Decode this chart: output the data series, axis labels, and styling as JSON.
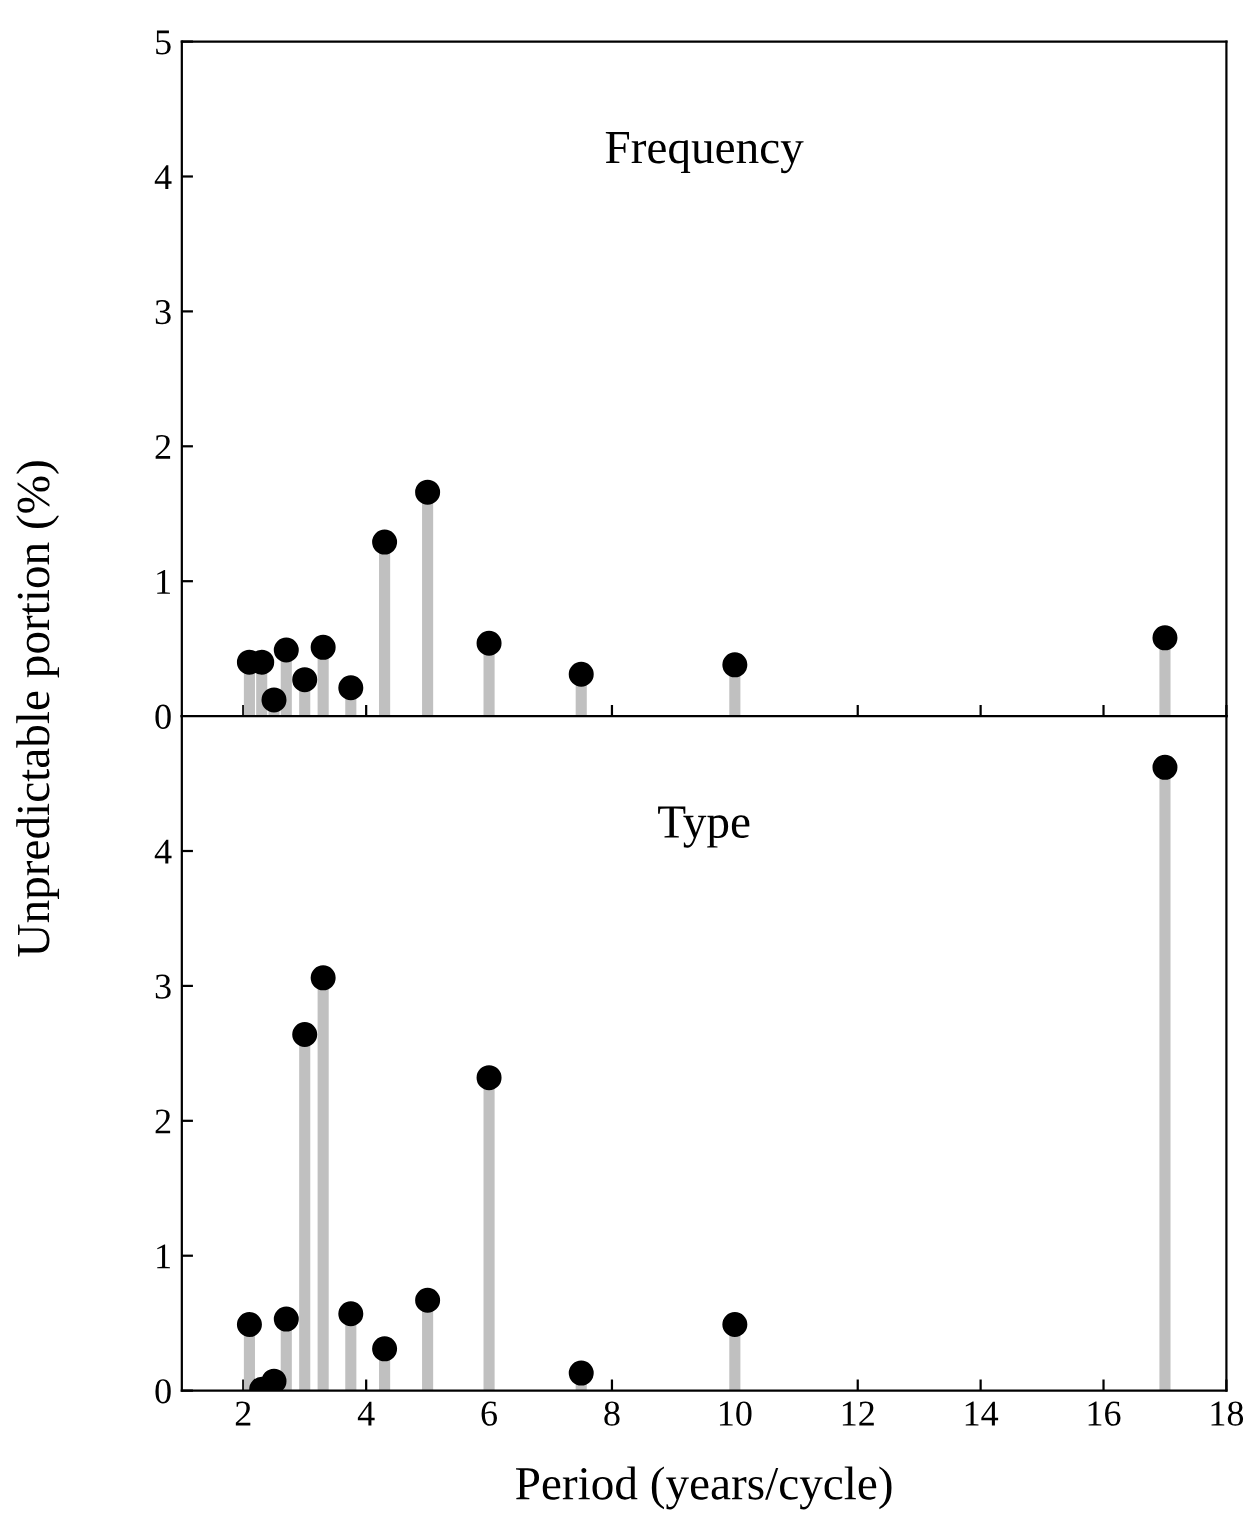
{
  "chart_data": [
    {
      "type": "lollipop",
      "title": "Frequency",
      "ylabel": "Unpredictable portion (%)",
      "x": [
        2.1,
        2.3,
        2.5,
        2.7,
        3,
        3.3,
        3.75,
        4.3,
        5,
        6,
        7.5,
        10,
        17
      ],
      "series": [
        {
          "color": "#000000",
          "values": [
            0.4,
            0.4,
            0.12,
            0.49,
            0.27,
            0.51,
            0.21,
            1.29,
            1.66,
            0.54,
            0.31,
            0.38,
            0.58
          ]
        }
      ],
      "marker": "circle",
      "xlim": [
        1,
        18
      ],
      "xticks": [
        2,
        4,
        6,
        8,
        10,
        12,
        14,
        16,
        18
      ],
      "ylim": [
        0,
        5
      ],
      "yticks": [
        0,
        1,
        2,
        3,
        4,
        5
      ],
      "tick_labels": "y",
      "grid": false,
      "legend": false
    },
    {
      "type": "lollipop",
      "title": "Type",
      "xlabel": "Period (years/cycle)",
      "x": [
        2.1,
        2.3,
        2.5,
        2.7,
        3,
        3.3,
        3.75,
        4.3,
        5,
        6,
        7.5,
        10,
        17
      ],
      "series": [
        {
          "color": "#000000",
          "values": [
            0.49,
            0.01,
            0.07,
            0.53,
            2.64,
            3.06,
            0.57,
            0.31,
            0.67,
            2.32,
            0.13,
            0.49,
            4.62
          ]
        }
      ],
      "marker": "circle",
      "xlim": [
        1,
        18
      ],
      "xticks": [
        2,
        4,
        6,
        8,
        10,
        12,
        14,
        16,
        18
      ],
      "ylim": [
        0,
        5
      ],
      "yticks": [
        0,
        1,
        2,
        3,
        4
      ],
      "grid": false,
      "legend": false
    }
  ]
}
